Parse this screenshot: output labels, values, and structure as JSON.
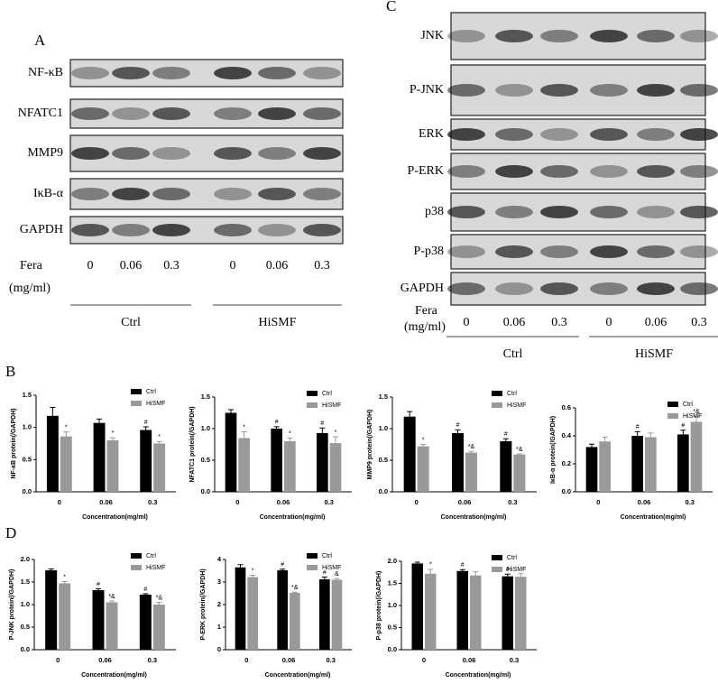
{
  "panel_a": {
    "label": "A",
    "blots": [
      "NF-κB",
      "NFATC1",
      "MMP9",
      "IκB-α",
      "GAPDH"
    ],
    "treatment_label": "Fera",
    "unit_label": "(mg/ml)",
    "doses": [
      "0",
      "0.06",
      "0.3",
      "0",
      "0.06",
      "0.3"
    ],
    "groups": [
      "Ctrl",
      "HiSMF"
    ]
  },
  "panel_c": {
    "label": "C",
    "blots": [
      "JNK",
      "P-JNK",
      "ERK",
      "P-ERK",
      "p38",
      "P-p38",
      "GAPDH"
    ],
    "treatment_label": "Fera",
    "unit_label": "(mg/ml)",
    "doses": [
      "0",
      "0.06",
      "0.3",
      "0",
      "0.06",
      "0.3"
    ],
    "groups": [
      "Ctrl",
      "HiSMF"
    ]
  },
  "panel_b_label": "B",
  "panel_d_label": "D",
  "chart_data": [
    {
      "type": "bar",
      "y_label": "NF-κB protein(/GAPDH)",
      "x_label": "Concentration(mg/ml)",
      "categories": [
        "0",
        "0.06",
        "0.3"
      ],
      "ylim": [
        0,
        1.5
      ],
      "yticks": [
        {
          "value": 0,
          "label": "0.0"
        },
        {
          "value": 0.5,
          "label": "0.5"
        },
        {
          "value": 1,
          "label": "1.0"
        },
        {
          "value": 1.5,
          "label": "1.5"
        }
      ],
      "series": [
        {
          "name": "Ctrl",
          "color": "#000000",
          "values": [
            1.18,
            1.07,
            0.96
          ],
          "errors": [
            0.13,
            0.06,
            0.05
          ],
          "marks": [
            null,
            null,
            "#"
          ]
        },
        {
          "name": "HiSMF",
          "color": "#999999",
          "values": [
            0.86,
            0.8,
            0.75
          ],
          "errors": [
            0.07,
            0.04,
            0.03
          ],
          "marks": [
            "*",
            "*",
            "*"
          ]
        }
      ]
    },
    {
      "type": "bar",
      "y_label": "NFATC1 protein(/GAPDH)",
      "x_label": "Concentration(mg/ml)",
      "categories": [
        "0",
        "0.06",
        "0.3"
      ],
      "ylim": [
        0,
        1.5
      ],
      "yticks": [
        {
          "value": 0,
          "label": "0.0"
        },
        {
          "value": 0.5,
          "label": "0.5"
        },
        {
          "value": 1,
          "label": "1.0"
        },
        {
          "value": 1.5,
          "label": "1.5"
        }
      ],
      "series": [
        {
          "name": "Ctrl",
          "color": "#000000",
          "values": [
            1.25,
            1.0,
            0.93
          ],
          "errors": [
            0.05,
            0.03,
            0.08
          ],
          "marks": [
            null,
            "#",
            "#"
          ]
        },
        {
          "name": "HiSMF",
          "color": "#999999",
          "values": [
            0.85,
            0.8,
            0.77
          ],
          "errors": [
            0.1,
            0.05,
            0.1
          ],
          "marks": [
            "*",
            "*",
            "*"
          ]
        }
      ]
    },
    {
      "type": "bar",
      "y_label": "MMP9 protein(/GAPDH)",
      "x_label": "Concentration(mg/ml)",
      "categories": [
        "0",
        "0.06",
        "0.3"
      ],
      "ylim": [
        0,
        1.5
      ],
      "yticks": [
        {
          "value": 0,
          "label": "0.0"
        },
        {
          "value": 0.5,
          "label": "0.5"
        },
        {
          "value": 1,
          "label": "1.0"
        },
        {
          "value": 1.5,
          "label": "1.5"
        }
      ],
      "series": [
        {
          "name": "Ctrl",
          "color": "#000000",
          "values": [
            1.19,
            0.93,
            0.8
          ],
          "errors": [
            0.08,
            0.05,
            0.04
          ],
          "marks": [
            null,
            "#",
            "#"
          ]
        },
        {
          "name": "HiSMF",
          "color": "#999999",
          "values": [
            0.72,
            0.62,
            0.59
          ],
          "errors": [
            0.03,
            0.02,
            0.01
          ],
          "marks": [
            "*",
            "*&",
            "*&"
          ]
        }
      ]
    },
    {
      "type": "bar",
      "y_label": "IκB-α protein(/GAPDH)",
      "x_label": "Concentration(mg/ml)",
      "categories": [
        "0",
        "0.06",
        "0.3"
      ],
      "ylim": [
        0,
        0.6
      ],
      "yticks": [
        {
          "value": 0,
          "label": "0.0"
        },
        0.2,
        0.4,
        0.6
      ],
      "series": [
        {
          "name": "Ctrl",
          "color": "#000000",
          "values": [
            0.32,
            0.4,
            0.41
          ],
          "errors": [
            0.02,
            0.03,
            0.03
          ],
          "marks": [
            null,
            "#",
            "#"
          ]
        },
        {
          "name": "HiSMF",
          "color": "#999999",
          "values": [
            0.36,
            0.39,
            0.5
          ],
          "errors": [
            0.03,
            0.03,
            0.04
          ],
          "marks": [
            null,
            null,
            "*&"
          ]
        }
      ]
    },
    {
      "type": "bar",
      "y_label": "P-JNK protein(/GAPDH)",
      "x_label": "Concentration(mg/ml)",
      "categories": [
        "0",
        "0.06",
        "0.3"
      ],
      "ylim": [
        0,
        2
      ],
      "yticks": [
        {
          "value": 0,
          "label": "0.0"
        },
        0.5,
        {
          "value": 1,
          "label": "1.0"
        },
        1.5,
        {
          "value": 2,
          "label": "2.0"
        }
      ],
      "series": [
        {
          "name": "Ctrl",
          "color": "#000000",
          "values": [
            1.76,
            1.32,
            1.22
          ],
          "errors": [
            0.03,
            0.03,
            0.02
          ],
          "marks": [
            null,
            "#",
            "#"
          ]
        },
        {
          "name": "HiSMF",
          "color": "#999999",
          "values": [
            1.47,
            1.05,
            1.0
          ],
          "errors": [
            0.04,
            0.03,
            0.05
          ],
          "marks": [
            "*",
            "*&",
            "*&"
          ]
        }
      ]
    },
    {
      "type": "bar",
      "y_label": "P-ERK protein(/GAPDH)",
      "x_label": "Concentration(mg/ml)",
      "categories": [
        "0",
        "0.06",
        "0.3"
      ],
      "ylim": [
        0,
        4
      ],
      "yticks": [
        0,
        1,
        2,
        3,
        4
      ],
      "series": [
        {
          "name": "Ctrl",
          "color": "#000000",
          "values": [
            3.65,
            3.52,
            3.12
          ],
          "errors": [
            0.12,
            0.05,
            0.1
          ],
          "marks": [
            null,
            "#",
            "#"
          ]
        },
        {
          "name": "HiSMF",
          "color": "#999999",
          "values": [
            3.22,
            2.52,
            3.1
          ],
          "errors": [
            0.08,
            0.03,
            0.05
          ],
          "marks": [
            "*",
            "*&",
            "&"
          ]
        }
      ]
    },
    {
      "type": "bar",
      "y_label": "P-p38 protein(/GAPDH)",
      "x_label": "Concentration(mg/ml)",
      "categories": [
        "0",
        "0.06",
        "0.3"
      ],
      "ylim": [
        0,
        2
      ],
      "yticks": [
        {
          "value": 0,
          "label": "0.0"
        },
        0.5,
        {
          "value": 1,
          "label": "1.0"
        },
        1.5,
        {
          "value": 2,
          "label": "2.0"
        }
      ],
      "series": [
        {
          "name": "Ctrl",
          "color": "#000000",
          "values": [
            1.95,
            1.78,
            1.66
          ],
          "errors": [
            0.03,
            0.03,
            0.05
          ],
          "marks": [
            null,
            "#",
            "#"
          ]
        },
        {
          "name": "HiSMF",
          "color": "#999999",
          "values": [
            1.72,
            1.68,
            1.65
          ],
          "errors": [
            0.1,
            0.08,
            0.07
          ],
          "marks": [
            "*",
            null,
            null
          ]
        }
      ]
    }
  ]
}
